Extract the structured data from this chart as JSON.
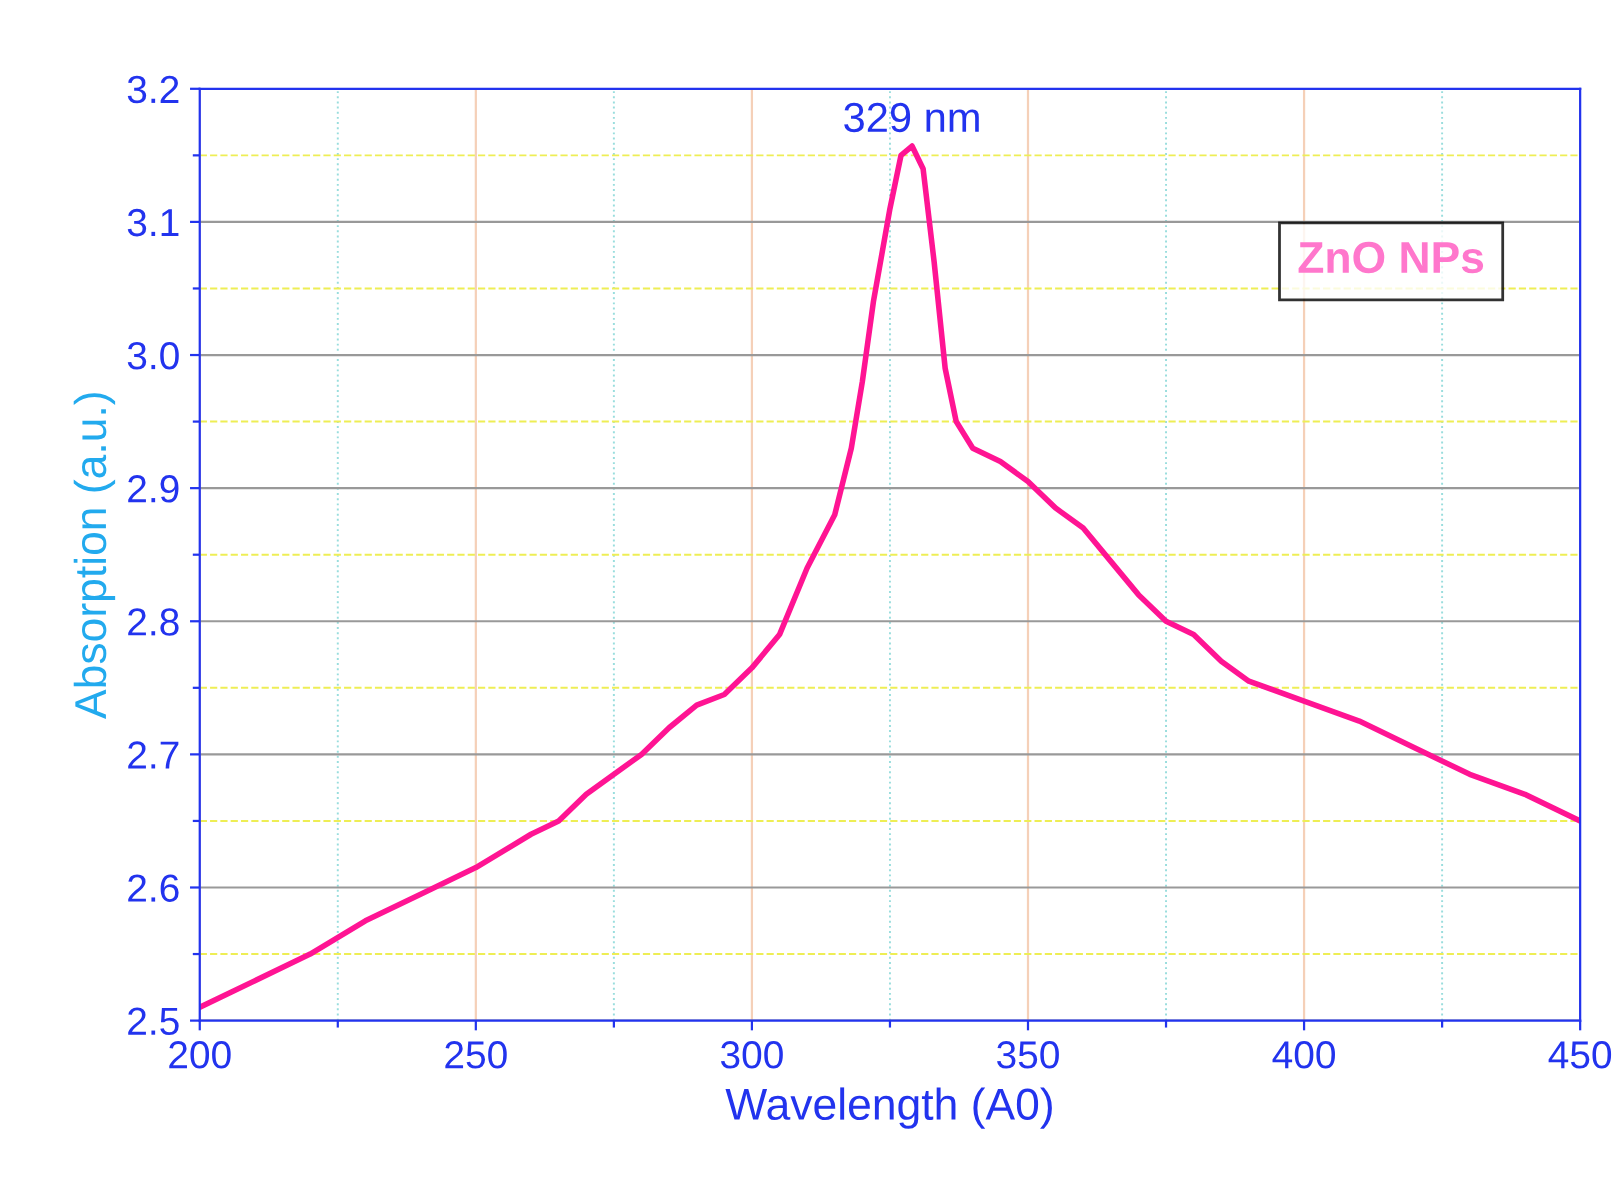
{
  "chart_data": {
    "type": "line",
    "xlabel": "Wavelength (A0)",
    "ylabel": "Absorption (a.u.)",
    "xlim": [
      200,
      450
    ],
    "ylim": [
      2.5,
      3.2
    ],
    "xticks": [
      200,
      {
        "value": 225,
        "label": null
      },
      250,
      {
        "value": 275,
        "label": null
      },
      300,
      {
        "value": 325,
        "label": null
      },
      350,
      {
        "value": 375,
        "label": null
      },
      400,
      {
        "value": 425,
        "label": null
      },
      450
    ],
    "yticks": [
      2.5,
      {
        "value": 2.55,
        "label": null
      },
      2.6,
      {
        "value": 2.65,
        "label": null
      },
      2.7,
      {
        "value": 2.75,
        "label": null
      },
      2.8,
      {
        "value": 2.85,
        "label": null
      },
      2.9,
      {
        "value": 2.95,
        "label": null
      },
      {
        "value": 3.0,
        "label": "3.0"
      },
      {
        "value": 3.05,
        "label": null
      },
      3.1,
      {
        "value": 3.15,
        "label": null
      },
      3.2
    ],
    "grid": true,
    "legend": "top right",
    "marker": "none",
    "line_style": "solid",
    "annotations": [
      {
        "text": "329 nm",
        "x": 329,
        "y": 3.157
      }
    ],
    "series": [
      {
        "name": "ZnO NPs",
        "color": "#ff1493",
        "x": [
          200,
          210,
          220,
          230,
          240,
          250,
          260,
          265,
          270,
          280,
          285,
          290,
          295,
          300,
          305,
          310,
          315,
          318,
          320,
          322,
          325,
          327,
          329,
          331,
          333,
          335,
          337,
          340,
          345,
          350,
          355,
          360,
          365,
          370,
          375,
          380,
          385,
          390,
          400,
          410,
          420,
          430,
          440,
          450
        ],
        "values": [
          2.51,
          2.53,
          2.55,
          2.575,
          2.595,
          2.615,
          2.64,
          2.65,
          2.67,
          2.7,
          2.72,
          2.737,
          2.745,
          2.765,
          2.79,
          2.84,
          2.88,
          2.93,
          2.98,
          3.04,
          3.11,
          3.15,
          3.157,
          3.14,
          3.07,
          2.99,
          2.95,
          2.93,
          2.92,
          2.905,
          2.885,
          2.87,
          2.845,
          2.82,
          2.8,
          2.79,
          2.77,
          2.755,
          2.74,
          2.725,
          2.705,
          2.685,
          2.67,
          2.65
        ]
      }
    ]
  }
}
